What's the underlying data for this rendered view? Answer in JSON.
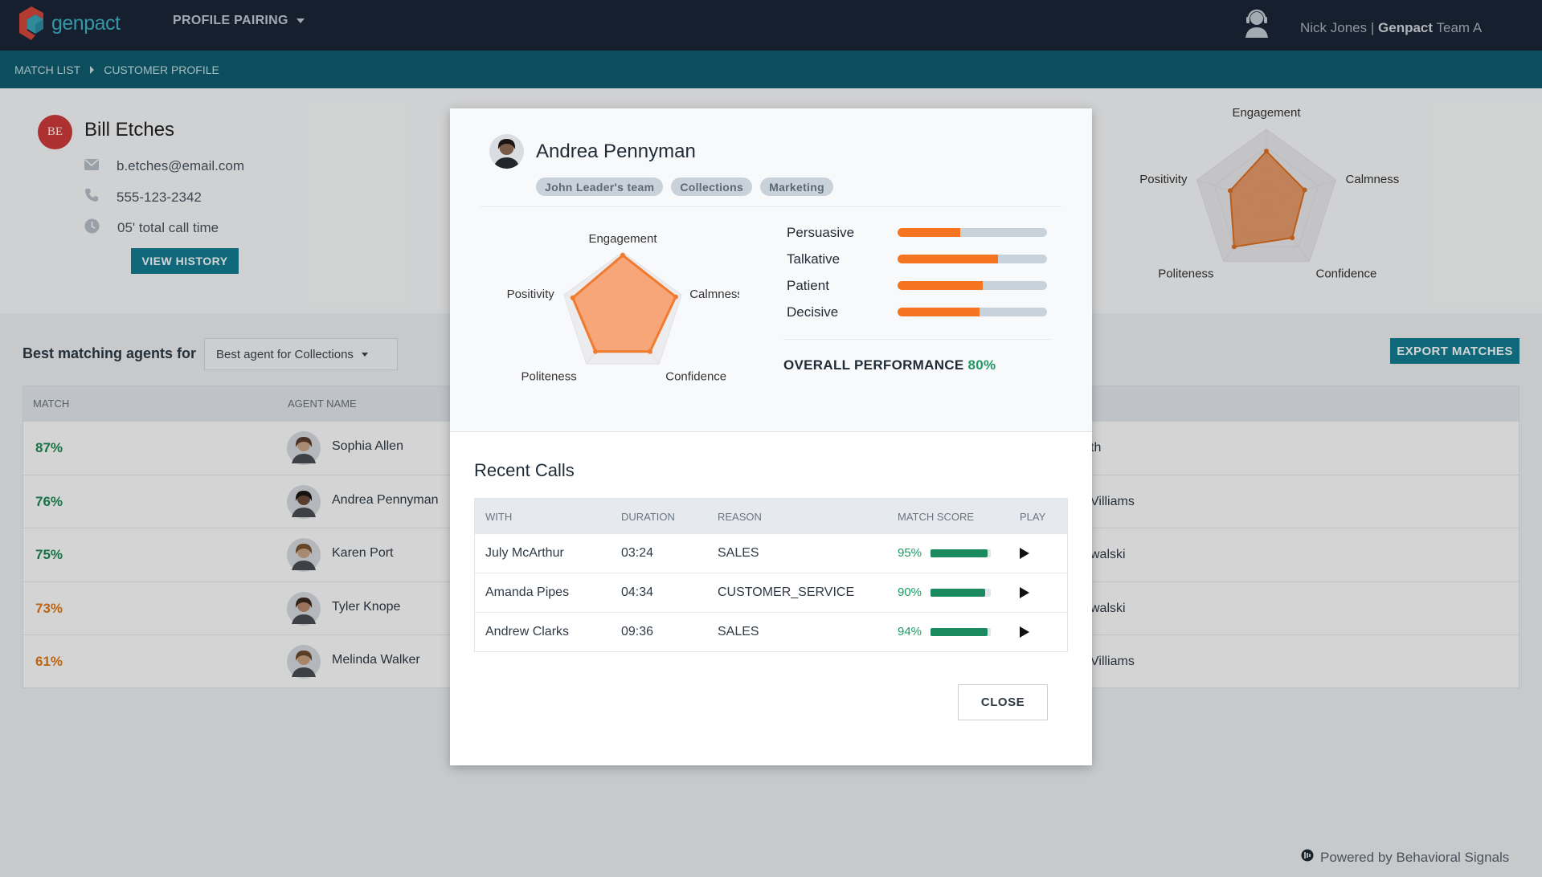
{
  "header": {
    "logo_text": "genpact",
    "app_menu": "PROFILE PAIRING",
    "user_name": "Nick Jones",
    "user_sep": "|",
    "user_company": "Genpact",
    "user_team": "Team A"
  },
  "breadcrumb": [
    "MATCH LIST",
    "CUSTOMER PROFILE"
  ],
  "customer": {
    "initials": "BE",
    "name": "Bill Etches",
    "email": "b.etches@email.com",
    "phone": "555-123-2342",
    "call_time": "05' total call time",
    "history_button": "VIEW HISTORY",
    "radar_labels": [
      "Engagement",
      "Calmness",
      "Confidence",
      "Politeness",
      "Positivity"
    ],
    "radar_values": [
      0.7,
      0.55,
      0.6,
      0.75,
      0.52
    ]
  },
  "list": {
    "title": "Best matching agents for",
    "select_value": "Best agent for Collections",
    "export_button": "EXPORT MATCHES",
    "columns": [
      "MATCH",
      "AGENT NAME"
    ],
    "rows": [
      {
        "match": "87%",
        "name": "Sophia Allen",
        "tail": "th",
        "color": "#1f8a55"
      },
      {
        "match": "76%",
        "name": "Andrea Pennyman",
        "tail": "Villiams",
        "color": "#1f8a55"
      },
      {
        "match": "75%",
        "name": "Karen Port",
        "tail": "walski",
        "color": "#1f8a55"
      },
      {
        "match": "73%",
        "name": "Tyler Knope",
        "tail": "walski",
        "color": "#e07a16"
      },
      {
        "match": "61%",
        "name": "Melinda Walker",
        "tail": "Villiams",
        "color": "#e07a16"
      }
    ]
  },
  "modal": {
    "name": "Andrea Pennyman",
    "tags": [
      "John Leader's team",
      "Collections",
      "Marketing"
    ],
    "radar_labels": [
      "Engagement",
      "Calmness",
      "Confidence",
      "Politeness",
      "Positivity"
    ],
    "radar_values": [
      0.95,
      0.9,
      0.75,
      0.75,
      0.85
    ],
    "traits": [
      {
        "label": "Persuasive",
        "value": 0.42
      },
      {
        "label": "Talkative",
        "value": 0.67
      },
      {
        "label": "Patient",
        "value": 0.57
      },
      {
        "label": "Decisive",
        "value": 0.55
      }
    ],
    "performance_label": "OVERALL PERFORMANCE",
    "performance_value": "80%",
    "recent_calls_title": "Recent Calls",
    "calls_columns": [
      "WITH",
      "DURATION",
      "REASON",
      "MATCH SCORE",
      "PLAY"
    ],
    "calls": [
      {
        "with": "July McArthur",
        "duration": "03:24",
        "reason": "SALES",
        "score": "95%",
        "score_value": 0.95
      },
      {
        "with": "Amanda Pipes",
        "duration": "04:34",
        "reason": "CUSTOMER_SERVICE",
        "score": "90%",
        "score_value": 0.9
      },
      {
        "with": "Andrew Clarks",
        "duration": "09:36",
        "reason": "SALES",
        "score": "94%",
        "score_value": 0.94
      }
    ],
    "close_button": "CLOSE"
  },
  "footer": "Powered by Behavioral Signals"
}
